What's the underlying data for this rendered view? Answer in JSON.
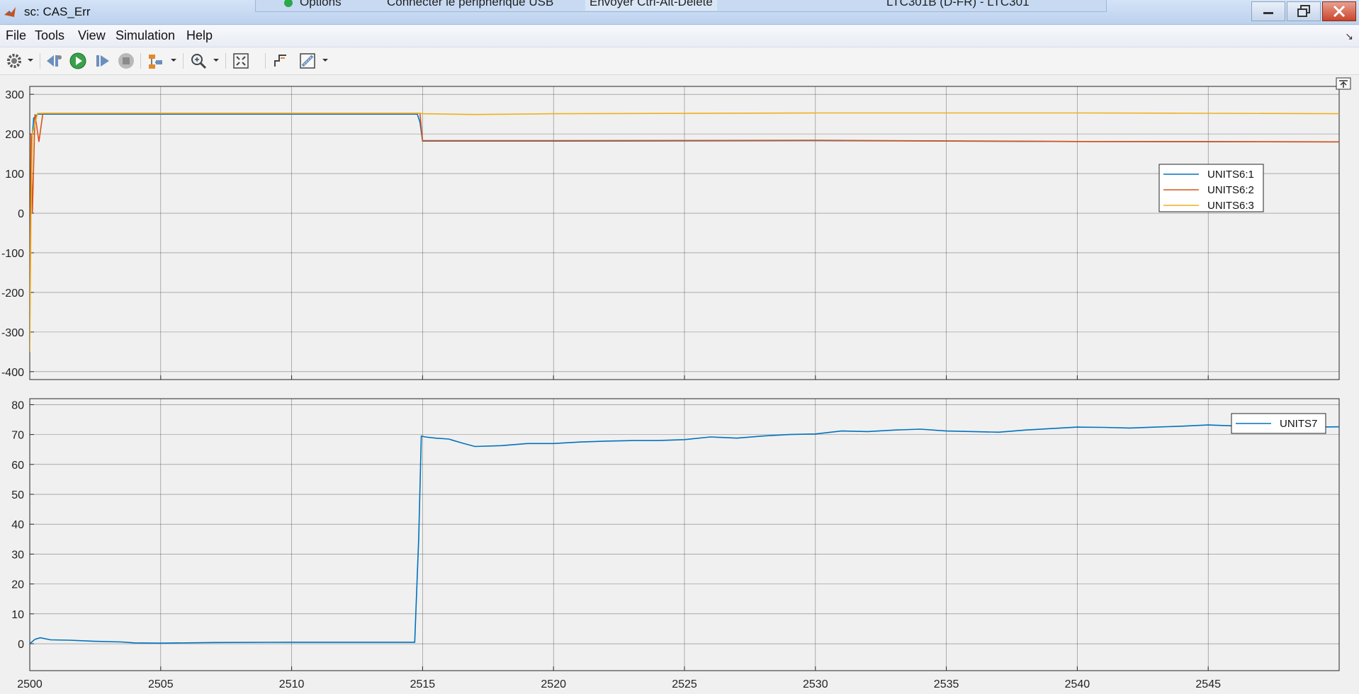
{
  "window": {
    "title": "sc: CAS_Err",
    "remote_bar": {
      "options": "Options",
      "usb": "Connecter le périphérique USB",
      "ctrl_alt_del": "Envoyer Ctrl-Alt-Delete",
      "machine": "LTC301B (D-FR) - LTC301"
    }
  },
  "menu": {
    "file": "File",
    "tools": "Tools",
    "view": "View",
    "simulation": "Simulation",
    "help": "Help"
  },
  "toolbar": {
    "icons": [
      "parameters-gear-icon",
      "step-back-icon",
      "run-icon",
      "step-forward-icon",
      "stop-icon",
      "signal-selector-icon",
      "zoom-icon",
      "fit-to-view-icon",
      "trigger-icon",
      "cursor-measure-icon"
    ]
  },
  "colors": {
    "series1": "#0072bd",
    "series2": "#d95319",
    "series3": "#edb120",
    "plot_bg": "#f0f0f0",
    "grid": "#262626"
  },
  "chart_data": [
    {
      "type": "line",
      "title": "",
      "xlim": [
        2500,
        2550
      ],
      "ylim": [
        -420,
        320
      ],
      "yticks": [
        300,
        200,
        100,
        0,
        -100,
        -200,
        -300,
        -400
      ],
      "xticks": [
        2500,
        2505,
        2510,
        2515,
        2520,
        2525,
        2530,
        2535,
        2540,
        2545
      ],
      "grid": true,
      "legend_position": "upper-right",
      "series": [
        {
          "name": "UNITS6:1",
          "x": [
            2500,
            2500.05,
            2500.15,
            2500.3,
            2500.5,
            2514.8,
            2514.9,
            2515.0,
            2520,
            2530,
            2540,
            2550
          ],
          "y": [
            -320,
            150,
            240,
            250,
            250,
            250,
            230,
            182,
            182,
            183,
            181,
            180
          ]
        },
        {
          "name": "UNITS6:2",
          "x": [
            2500,
            2500.05,
            2500.1,
            2500.2,
            2500.35,
            2500.5,
            2514.9,
            2515.0,
            2520,
            2530,
            2540,
            2550
          ],
          "y": [
            -300,
            200,
            0,
            250,
            180,
            252,
            252,
            183,
            183,
            184,
            181,
            180
          ]
        },
        {
          "name": "UNITS6:3",
          "x": [
            2500,
            2500.05,
            2500.1,
            2500.3,
            2500.5,
            2514.9,
            2515.0,
            2517,
            2520,
            2530,
            2540,
            2545,
            2550
          ],
          "y": [
            -350,
            0,
            200,
            252,
            252,
            252,
            251,
            249,
            251,
            253,
            253,
            252,
            251
          ]
        }
      ]
    },
    {
      "type": "line",
      "title": "",
      "xlim": [
        2500,
        2550
      ],
      "ylim": [
        -9,
        82
      ],
      "yticks": [
        80,
        70,
        60,
        50,
        40,
        30,
        20,
        10,
        0
      ],
      "xticks": [
        2500,
        2505,
        2510,
        2515,
        2520,
        2525,
        2530,
        2535,
        2540,
        2545
      ],
      "grid": true,
      "legend_position": "upper-right",
      "series": [
        {
          "name": "UNITS7",
          "x": [
            2500,
            2500.2,
            2500.4,
            2500.8,
            2501.5,
            2502.5,
            2503.5,
            2504,
            2505,
            2507,
            2510,
            2512,
            2514.7,
            2514.85,
            2514.95,
            2515.1,
            2515.5,
            2516,
            2516.5,
            2517,
            2518,
            2519,
            2520,
            2521,
            2522,
            2523,
            2524,
            2525,
            2526,
            2527,
            2528,
            2529,
            2530,
            2531,
            2532,
            2533,
            2534,
            2535,
            2536,
            2537,
            2538,
            2539,
            2540,
            2541,
            2542,
            2543,
            2544,
            2545,
            2546,
            2547,
            2548,
            2549,
            2550
          ],
          "y": [
            0,
            1.5,
            2,
            1.3,
            1.2,
            0.8,
            0.6,
            0.3,
            0.2,
            0.4,
            0.5,
            0.5,
            0.5,
            35,
            69.5,
            69.2,
            68.8,
            68.5,
            67.2,
            66,
            66.3,
            67,
            67,
            67.5,
            67.8,
            68,
            68,
            68.3,
            69.2,
            68.8,
            69.5,
            70,
            70.2,
            71.2,
            71,
            71.5,
            71.8,
            71.2,
            71,
            70.8,
            71.5,
            72,
            72.5,
            72.4,
            72.2,
            72.5,
            72.8,
            73.2,
            72.9,
            72.6,
            72.7,
            72.5,
            72.6
          ]
        }
      ]
    }
  ]
}
